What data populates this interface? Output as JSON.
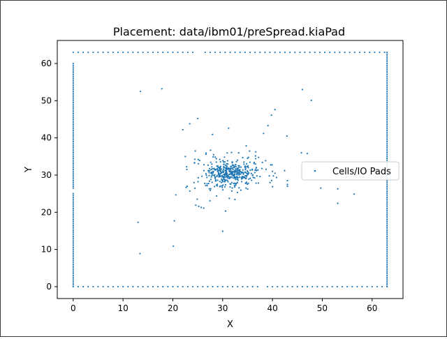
{
  "chart_data": {
    "type": "scatter",
    "title": "Placement: data/ibm01/preSpread.kiaPad",
    "xlabel": "X",
    "ylabel": "Y",
    "xlim": [
      -3.2,
      66.2
    ],
    "ylim": [
      -3.2,
      66.2
    ],
    "x_ticks": [
      0,
      10,
      20,
      30,
      40,
      50,
      60
    ],
    "y_ticks": [
      0,
      10,
      20,
      30,
      40,
      50,
      60
    ],
    "legend": "center-right",
    "grid": false,
    "series": [
      {
        "name": "Cells/IO Pads",
        "color": "#1f77b4",
        "pads": {
          "bottom_segments": [
            [
              0,
              37,
              1
            ],
            [
              39,
              63,
              1
            ]
          ],
          "top_segments": [
            [
              0,
              24.5,
              1
            ],
            [
              26.5,
              63,
              1
            ]
          ],
          "left_segments": [
            [
              0,
              25,
              0.5
            ],
            [
              26.5,
              60,
              0.5
            ]
          ],
          "right_segments": [
            [
              0,
              63,
              0.5
            ]
          ]
        },
        "cluster": {
          "center_x": 31.5,
          "center_y": 30.5,
          "core_spread": [
            2.2,
            1.3
          ],
          "halo_spread": [
            4.2,
            3.0
          ],
          "core_count": 260,
          "halo_count": 200,
          "seed": 7
        },
        "outliers": [
          [
            13.5,
            52.5
          ],
          [
            17.8,
            53.2
          ],
          [
            13,
            17.3
          ],
          [
            13.4,
            8.9
          ],
          [
            20.3,
            17.7
          ],
          [
            20.1,
            10.9
          ],
          [
            30,
            14.9
          ],
          [
            46,
            53
          ],
          [
            47.8,
            50.1
          ],
          [
            40.5,
            47.6
          ],
          [
            39.8,
            46.1
          ],
          [
            39.1,
            43.3
          ],
          [
            42.9,
            40.5
          ],
          [
            38.2,
            41.2
          ],
          [
            31.2,
            42.6
          ],
          [
            22,
            42.2
          ],
          [
            23.4,
            43.8
          ],
          [
            25,
            45.2
          ],
          [
            45.8,
            36
          ],
          [
            47,
            35.8
          ],
          [
            43,
            28.5
          ],
          [
            43,
            27.5
          ],
          [
            43,
            27
          ],
          [
            49.7,
            26.5
          ],
          [
            53.1,
            26.3
          ],
          [
            56.4,
            24.9
          ],
          [
            53.1,
            22.4
          ],
          [
            25.2,
            21.6
          ],
          [
            25.7,
            21.3
          ],
          [
            26.2,
            21.1
          ],
          [
            24.6,
            21.9
          ],
          [
            40,
            31
          ],
          [
            39.5,
            28
          ],
          [
            40.5,
            30.5
          ],
          [
            22.5,
            35
          ],
          [
            24.5,
            36.5
          ]
        ]
      }
    ]
  }
}
